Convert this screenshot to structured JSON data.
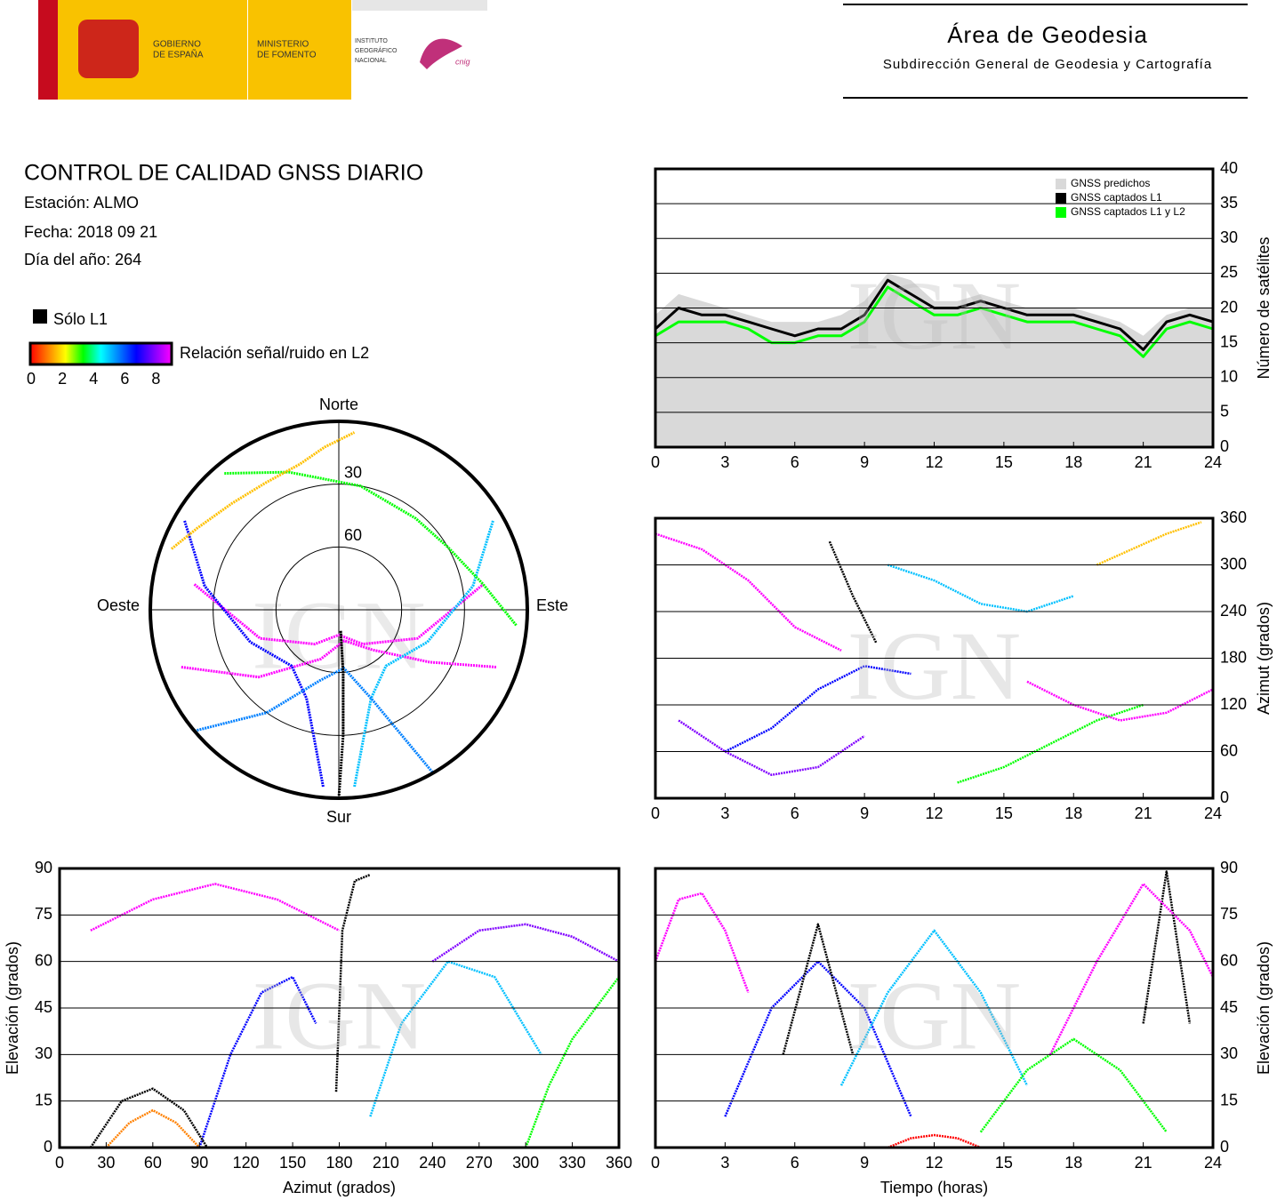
{
  "header": {
    "government": [
      "GOBIERNO",
      "DE ESPAÑA"
    ],
    "ministry": [
      "MINISTERIO",
      "DE FOMENTO"
    ],
    "institute": [
      "INSTITUTO",
      "GEOGRÁFICO",
      "NACIONAL"
    ],
    "cnig": "cnig",
    "area": "Área de Geodesia",
    "subdivision": "Subdirección General de Geodesia y Cartografía"
  },
  "report": {
    "title": "CONTROL DE CALIDAD GNSS DIARIO",
    "station": "Estación: ALMO",
    "date": "Fecha: 2018 09 21",
    "day_of_year": "Día del año: 264"
  },
  "l1_only": {
    "label": "Sólo L1",
    "color": "#000000"
  },
  "colorbar": {
    "label": "Relación señal/ruido en L2",
    "lim": [
      0,
      9
    ],
    "ticks": [
      0,
      2,
      4,
      6,
      8
    ],
    "colors": [
      "#ff0000",
      "#ff8000",
      "#ffff00",
      "#00ff00",
      "#00ffff",
      "#0080ff",
      "#0000ff",
      "#8000ff",
      "#ff00ff"
    ]
  },
  "watermark": "IGN",
  "chart_data": [
    {
      "type": "polar",
      "directions": {
        "north": "Norte",
        "south": "Sur",
        "east": "Este",
        "west": "Oeste"
      },
      "rings": [
        30,
        60
      ],
      "series": [
        {
          "color": "#ff00ff",
          "azimuth": [
            250,
            230,
            200,
            170,
            140,
            120,
            110
          ],
          "elevation": [
            10,
            40,
            65,
            75,
            65,
            40,
            10
          ]
        },
        {
          "color": "#ff00ff",
          "azimuth": [
            280,
            250,
            215,
            180,
            145,
            110,
            80
          ],
          "elevation": [
            20,
            50,
            70,
            78,
            70,
            50,
            20
          ]
        },
        {
          "color": "#0000ff",
          "azimuth": [
            300,
            280,
            250,
            220,
            200,
            190,
            185
          ],
          "elevation": [
            5,
            25,
            45,
            55,
            45,
            25,
            5
          ]
        },
        {
          "color": "#00c0ff",
          "azimuth": [
            60,
            80,
            110,
            140,
            160,
            170,
            175
          ],
          "elevation": [
            5,
            25,
            45,
            55,
            45,
            25,
            5
          ]
        },
        {
          "color": "#00ff00",
          "azimuth": [
            320,
            340,
            10,
            40,
            60,
            80,
            95
          ],
          "elevation": [
            5,
            20,
            30,
            33,
            30,
            20,
            5
          ]
        },
        {
          "color": "#ffc000",
          "azimuth": [
            290,
            300,
            315,
            330,
            345,
            355,
            5
          ],
          "elevation": [
            5,
            12,
            18,
            20,
            18,
            12,
            5
          ]
        },
        {
          "color": "#0080ff",
          "azimuth": [
            230,
            215,
            195,
            175,
            160,
            150
          ],
          "elevation": [
            0,
            30,
            55,
            62,
            45,
            0
          ]
        },
        {
          "color": "#000000",
          "azimuth": [
            180,
            178,
            176,
            175,
            176,
            178
          ],
          "elevation": [
            0,
            30,
            60,
            80,
            60,
            30
          ]
        }
      ]
    },
    {
      "type": "line",
      "ylabel": "Número de satélites",
      "xlim": [
        0,
        24
      ],
      "xticks": [
        0,
        3,
        6,
        9,
        12,
        15,
        18,
        21,
        24
      ],
      "ylim": [
        0,
        40
      ],
      "yticks": [
        0,
        5,
        10,
        15,
        20,
        25,
        30,
        35,
        40
      ],
      "grid": true,
      "legend": "upper right",
      "x": [
        0,
        1,
        2,
        3,
        4,
        5,
        6,
        7,
        8,
        9,
        10,
        11,
        12,
        13,
        14,
        15,
        16,
        17,
        18,
        19,
        20,
        21,
        22,
        23,
        24
      ],
      "series": [
        {
          "name": "GNSS predichos",
          "color": "#d9d9d9",
          "fill": true,
          "values": [
            19,
            22,
            21,
            20,
            19,
            18,
            18,
            18,
            19,
            21,
            25,
            24,
            21,
            21,
            22,
            21,
            20,
            20,
            20,
            19,
            18,
            16,
            19,
            20,
            20
          ]
        },
        {
          "name": "GNSS captados L1",
          "color": "#000000",
          "values": [
            17,
            20,
            19,
            19,
            18,
            17,
            16,
            17,
            17,
            19,
            24,
            22,
            20,
            20,
            21,
            20,
            19,
            19,
            19,
            18,
            17,
            14,
            18,
            19,
            18
          ]
        },
        {
          "name": "GNSS captados L1 y L2",
          "color": "#00ff00",
          "values": [
            16,
            18,
            18,
            18,
            17,
            15,
            15,
            16,
            16,
            18,
            23,
            21,
            19,
            19,
            20,
            19,
            18,
            18,
            18,
            17,
            16,
            13,
            17,
            18,
            17
          ]
        }
      ]
    },
    {
      "type": "track",
      "ylabel": "Azimut (grados)",
      "xlim": [
        0,
        24
      ],
      "xticks": [
        0,
        3,
        6,
        9,
        12,
        15,
        18,
        21,
        24
      ],
      "ylim": [
        0,
        360
      ],
      "yticks": [
        0,
        60,
        120,
        180,
        240,
        300,
        360
      ],
      "grid": true,
      "series": [
        {
          "color": "#ff00ff",
          "x": [
            0,
            2,
            4,
            6,
            8
          ],
          "values": [
            340,
            320,
            280,
            220,
            190
          ]
        },
        {
          "color": "#0000ff",
          "x": [
            3,
            5,
            7,
            9,
            11
          ],
          "values": [
            60,
            90,
            140,
            170,
            160
          ]
        },
        {
          "color": "#00c0ff",
          "x": [
            10,
            12,
            14,
            16,
            18
          ],
          "values": [
            300,
            280,
            250,
            240,
            260
          ]
        },
        {
          "color": "#00ff00",
          "x": [
            13,
            15,
            17,
            19,
            21
          ],
          "values": [
            20,
            40,
            70,
            100,
            120
          ]
        },
        {
          "color": "#000000",
          "x": [
            7.5,
            8.5,
            9.5
          ],
          "values": [
            330,
            260,
            200
          ]
        },
        {
          "color": "#ff00ff",
          "x": [
            16,
            18,
            20,
            22,
            24
          ],
          "values": [
            150,
            120,
            100,
            110,
            140
          ]
        },
        {
          "color": "#ffc000",
          "x": [
            19,
            20.5,
            22,
            23.5
          ],
          "values": [
            300,
            320,
            340,
            355
          ]
        },
        {
          "color": "#8000ff",
          "x": [
            1,
            3,
            5,
            7,
            9
          ],
          "values": [
            100,
            60,
            30,
            40,
            80
          ]
        }
      ]
    },
    {
      "type": "track",
      "xlabel": "Azimut (grados)",
      "ylabel": "Elevación (grados)",
      "xlim": [
        0,
        360
      ],
      "xticks": [
        0,
        30,
        60,
        90,
        120,
        150,
        180,
        210,
        240,
        270,
        300,
        330,
        360
      ],
      "ylim": [
        0,
        90
      ],
      "yticks": [
        0,
        15,
        30,
        45,
        60,
        75,
        90
      ],
      "grid": true,
      "series": [
        {
          "color": "#ff00ff",
          "x": [
            20,
            60,
            100,
            140,
            180
          ],
          "values": [
            70,
            80,
            85,
            80,
            70
          ]
        },
        {
          "color": "#0000ff",
          "x": [
            90,
            110,
            130,
            150,
            165
          ],
          "values": [
            0,
            30,
            50,
            55,
            40
          ]
        },
        {
          "color": "#00c0ff",
          "x": [
            200,
            220,
            250,
            280,
            310
          ],
          "values": [
            10,
            40,
            60,
            55,
            30
          ]
        },
        {
          "color": "#00ff00",
          "x": [
            300,
            315,
            330,
            345,
            360
          ],
          "values": [
            0,
            20,
            35,
            45,
            55
          ]
        },
        {
          "color": "#ff8000",
          "x": [
            30,
            45,
            60,
            75,
            90
          ],
          "values": [
            0,
            8,
            12,
            8,
            0
          ]
        },
        {
          "color": "#000000",
          "x": [
            20,
            40,
            60,
            80,
            95
          ],
          "values": [
            0,
            15,
            19,
            12,
            0
          ]
        },
        {
          "color": "#000000",
          "x": [
            178,
            182,
            190,
            200
          ],
          "values": [
            18,
            70,
            86,
            88
          ]
        },
        {
          "color": "#8000ff",
          "x": [
            240,
            270,
            300,
            330,
            360
          ],
          "values": [
            60,
            70,
            72,
            68,
            60
          ]
        }
      ]
    },
    {
      "type": "track",
      "xlabel": "Tiempo (horas)",
      "ylabel": "Elevación (grados)",
      "xlim": [
        0,
        24
      ],
      "xticks": [
        0,
        3,
        6,
        9,
        12,
        15,
        18,
        21,
        24
      ],
      "ylim": [
        0,
        90
      ],
      "yticks": [
        0,
        15,
        30,
        45,
        60,
        75,
        90
      ],
      "grid": true,
      "series": [
        {
          "color": "#ff00ff",
          "x": [
            0,
            1,
            2,
            3,
            4
          ],
          "values": [
            60,
            80,
            82,
            70,
            50
          ]
        },
        {
          "color": "#0000ff",
          "x": [
            3,
            5,
            7,
            9,
            11
          ],
          "values": [
            10,
            45,
            60,
            45,
            10
          ]
        },
        {
          "color": "#00c0ff",
          "x": [
            8,
            10,
            12,
            14,
            16
          ],
          "values": [
            20,
            50,
            70,
            50,
            20
          ]
        },
        {
          "color": "#00ff00",
          "x": [
            14,
            16,
            18,
            20,
            22
          ],
          "values": [
            5,
            25,
            35,
            25,
            5
          ]
        },
        {
          "color": "#000000",
          "x": [
            5.5,
            7,
            8.5
          ],
          "values": [
            30,
            72,
            30
          ]
        },
        {
          "color": "#000000",
          "x": [
            21,
            22,
            23
          ],
          "values": [
            40,
            89,
            40
          ]
        },
        {
          "color": "#ff00ff",
          "x": [
            17,
            19,
            21,
            23,
            24
          ],
          "values": [
            30,
            60,
            85,
            70,
            55
          ]
        },
        {
          "color": "#ff0000",
          "x": [
            10,
            11,
            12,
            13,
            14
          ],
          "values": [
            0,
            3,
            4,
            3,
            0
          ]
        }
      ]
    }
  ]
}
